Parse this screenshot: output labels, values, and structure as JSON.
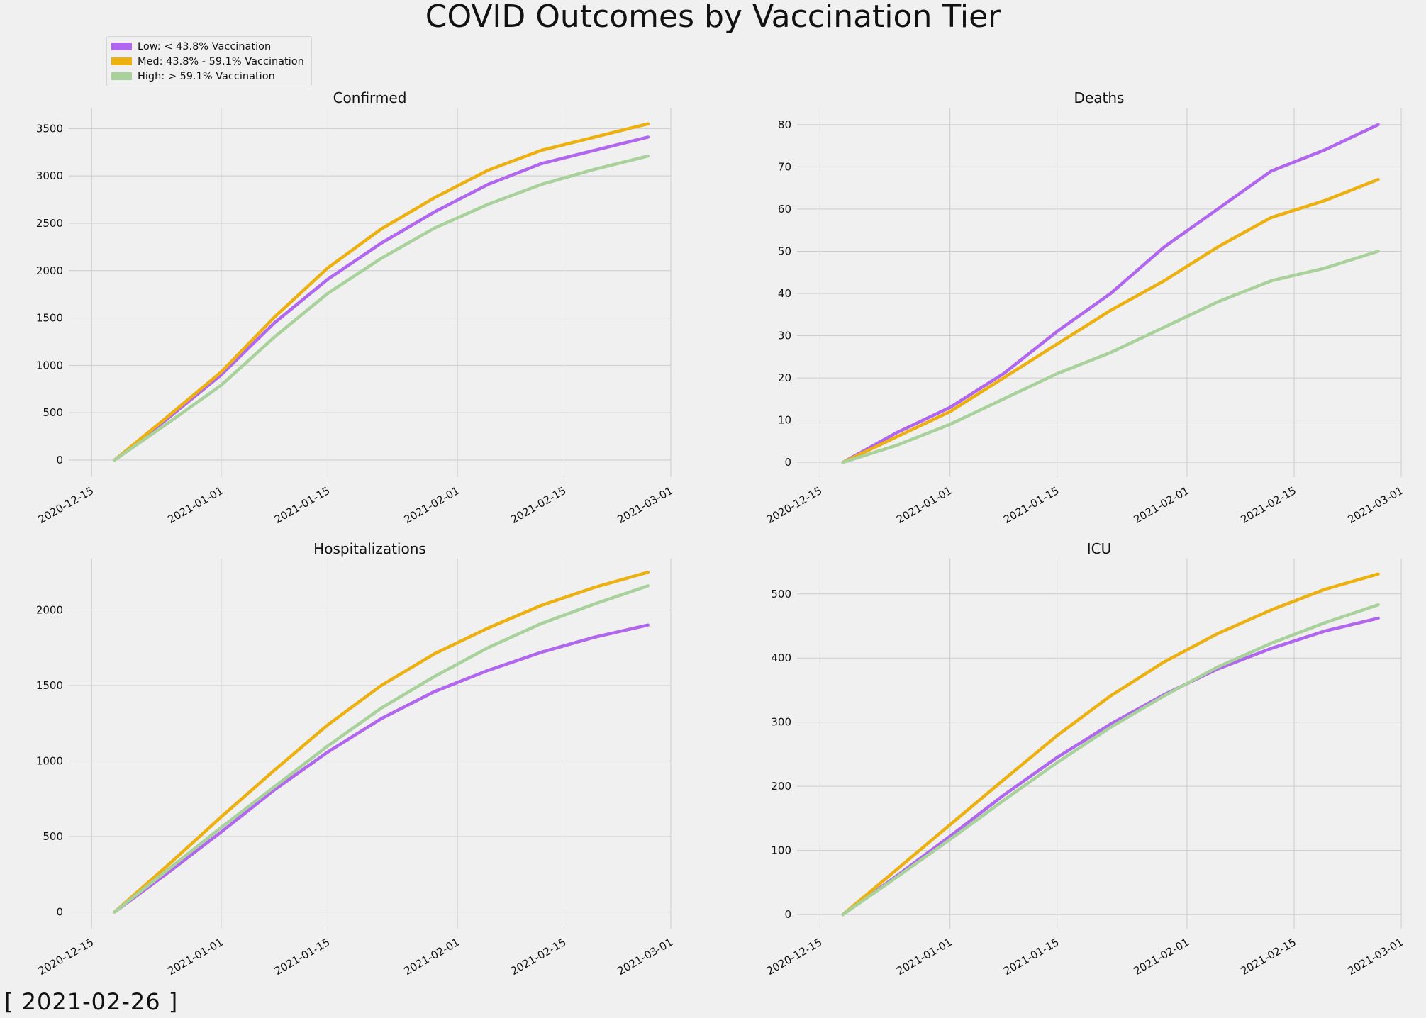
{
  "suptitle": "COVID Outcomes by Vaccination Tier",
  "date_stamp": "[ 2021-02-26 ]",
  "legend": [
    {
      "label": "Low: < 43.8% Vaccination",
      "color": "#b066ee"
    },
    {
      "label": "Med: 43.8% - 59.1% Vaccination",
      "color": "#ecb010"
    },
    {
      "label": "High: > 59.1%  Vaccination",
      "color": "#a8d19b"
    }
  ],
  "legend_placement": "upper-left above top-left panel",
  "style": {
    "background": "#f0f0f0",
    "grid": "#cbcbcb",
    "line_width": 4.5
  },
  "chart_data": [
    {
      "type": "line",
      "title": "Confirmed",
      "xticks": [
        "2020-12-15",
        "2021-01-01",
        "2021-01-15",
        "2021-02-01",
        "2021-02-15",
        "2021-03-01"
      ],
      "xlim": [
        "2020-12-12",
        "2021-03-01"
      ],
      "yticks": [
        0,
        500,
        1000,
        1500,
        2000,
        2500,
        3000,
        3500
      ],
      "ylim": [
        -180,
        3720
      ],
      "grid": true,
      "x": [
        "2020-12-18",
        "2020-12-25",
        "2021-01-01",
        "2021-01-08",
        "2021-01-15",
        "2021-01-22",
        "2021-01-29",
        "2021-02-05",
        "2021-02-12",
        "2021-02-19",
        "2021-02-26"
      ],
      "series": [
        {
          "name": "Low: < 43.8% Vaccination",
          "color": "#b066ee",
          "values": [
            0,
            440,
            900,
            1450,
            1910,
            2290,
            2620,
            2910,
            3130,
            3270,
            3410
          ]
        },
        {
          "name": "Med: 43.8% - 59.1% Vaccination",
          "color": "#ecb010",
          "values": [
            0,
            460,
            930,
            1510,
            2030,
            2440,
            2770,
            3060,
            3270,
            3410,
            3550
          ]
        },
        {
          "name": "High: > 59.1%  Vaccination",
          "color": "#a8d19b",
          "values": [
            0,
            390,
            790,
            1300,
            1760,
            2130,
            2450,
            2700,
            2910,
            3070,
            3210
          ]
        }
      ]
    },
    {
      "type": "line",
      "title": "Deaths",
      "xticks": [
        "2020-12-15",
        "2021-01-01",
        "2021-01-15",
        "2021-02-01",
        "2021-02-15",
        "2021-03-01"
      ],
      "xlim": [
        "2020-12-12",
        "2021-03-01"
      ],
      "yticks": [
        0,
        10,
        20,
        30,
        40,
        50,
        60,
        70,
        80
      ],
      "ylim": [
        -3.5,
        84
      ],
      "grid": true,
      "x": [
        "2020-12-18",
        "2020-12-25",
        "2021-01-01",
        "2021-01-08",
        "2021-01-15",
        "2021-01-22",
        "2021-01-29",
        "2021-02-05",
        "2021-02-12",
        "2021-02-19",
        "2021-02-26"
      ],
      "series": [
        {
          "name": "Low: < 43.8% Vaccination",
          "color": "#b066ee",
          "values": [
            0,
            7,
            13,
            21,
            31,
            40,
            51,
            60,
            69,
            74,
            80
          ]
        },
        {
          "name": "Med: 43.8% - 59.1% Vaccination",
          "color": "#ecb010",
          "values": [
            0,
            6,
            12,
            20,
            28,
            36,
            43,
            51,
            58,
            62,
            67
          ]
        },
        {
          "name": "High: > 59.1%  Vaccination",
          "color": "#a8d19b",
          "values": [
            0,
            4,
            9,
            15,
            21,
            26,
            32,
            38,
            43,
            46,
            50
          ]
        }
      ]
    },
    {
      "type": "line",
      "title": "Hospitalizations",
      "xticks": [
        "2020-12-15",
        "2021-01-01",
        "2021-01-15",
        "2021-02-01",
        "2021-02-15",
        "2021-03-01"
      ],
      "xlim": [
        "2020-12-12",
        "2021-03-01"
      ],
      "yticks": [
        0,
        500,
        1000,
        1500,
        2000
      ],
      "ylim": [
        -110,
        2340
      ],
      "grid": true,
      "x": [
        "2020-12-18",
        "2020-12-25",
        "2021-01-01",
        "2021-01-08",
        "2021-01-15",
        "2021-01-22",
        "2021-01-29",
        "2021-02-05",
        "2021-02-12",
        "2021-02-19",
        "2021-02-26"
      ],
      "series": [
        {
          "name": "Low: < 43.8% Vaccination",
          "color": "#b066ee",
          "values": [
            0,
            260,
            530,
            810,
            1060,
            1280,
            1460,
            1600,
            1720,
            1820,
            1900
          ]
        },
        {
          "name": "Med: 43.8% - 59.1% Vaccination",
          "color": "#ecb010",
          "values": [
            0,
            310,
            630,
            940,
            1240,
            1500,
            1710,
            1880,
            2030,
            2150,
            2250
          ]
        },
        {
          "name": "High: > 59.1%  Vaccination",
          "color": "#a8d19b",
          "values": [
            0,
            280,
            560,
            830,
            1100,
            1350,
            1560,
            1750,
            1910,
            2040,
            2160
          ]
        }
      ]
    },
    {
      "type": "line",
      "title": "ICU",
      "xticks": [
        "2020-12-15",
        "2021-01-01",
        "2021-01-15",
        "2021-02-01",
        "2021-02-15",
        "2021-03-01"
      ],
      "xlim": [
        "2020-12-12",
        "2021-03-01"
      ],
      "yticks": [
        0,
        100,
        200,
        300,
        400,
        500
      ],
      "ylim": [
        -22,
        555
      ],
      "grid": true,
      "x": [
        "2020-12-18",
        "2020-12-25",
        "2021-01-01",
        "2021-01-08",
        "2021-01-15",
        "2021-01-22",
        "2021-01-29",
        "2021-02-05",
        "2021-02-12",
        "2021-02-19",
        "2021-02-26"
      ],
      "series": [
        {
          "name": "Low: < 43.8% Vaccination",
          "color": "#b066ee",
          "values": [
            0,
            60,
            122,
            186,
            245,
            297,
            343,
            383,
            415,
            442,
            462
          ]
        },
        {
          "name": "Med: 43.8% - 59.1% Vaccination",
          "color": "#ecb010",
          "values": [
            0,
            70,
            140,
            210,
            279,
            341,
            394,
            438,
            475,
            507,
            531
          ]
        },
        {
          "name": "High: > 59.1%  Vaccination",
          "color": "#a8d19b",
          "values": [
            0,
            58,
            117,
            178,
            237,
            292,
            341,
            386,
            423,
            455,
            483
          ]
        }
      ]
    }
  ]
}
